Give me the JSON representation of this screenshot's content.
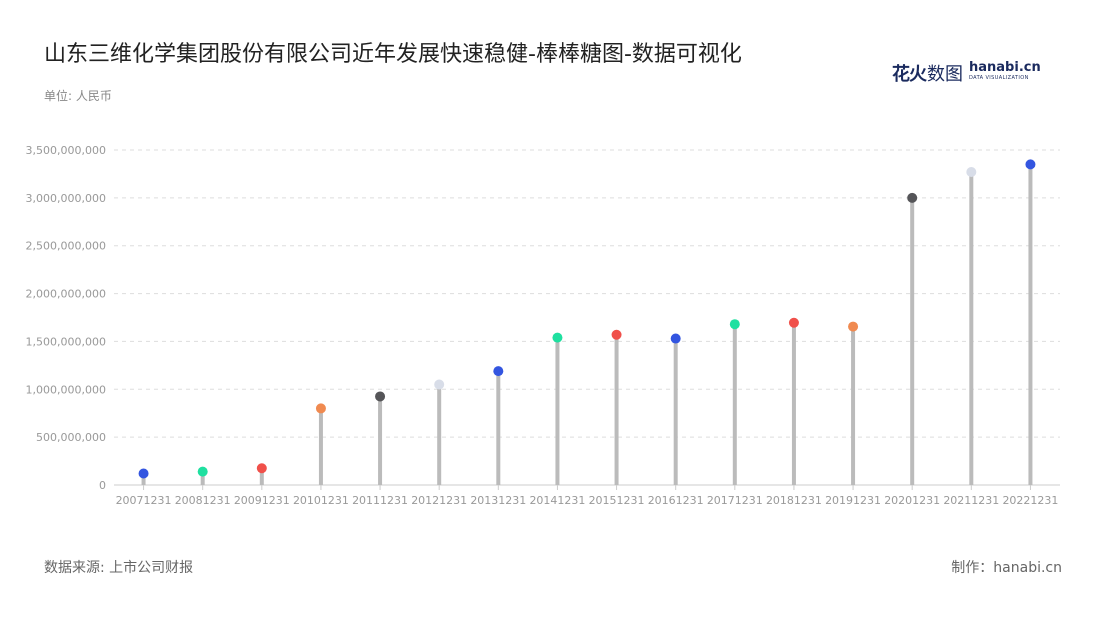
{
  "header": {
    "title": "山东三维化学集团股份有限公司近年发展快速稳健-棒棒糖图-数据可视化",
    "unit": "单位: 人民币"
  },
  "logo": {
    "cn": "花火",
    "cn2": "数图",
    "en": "hanabi.cn",
    "en_sub": "DATA VISUALIZATION"
  },
  "footer": {
    "source": "数据来源: 上市公司财报",
    "maker": "制作：hanabi.cn"
  },
  "colors": {
    "stem": "#bbbbbb",
    "grid": "#dddddd",
    "axis": "#cccccc",
    "dot_palette": [
      "#3355e0",
      "#1fe0a0",
      "#f0504a",
      "#f08a50",
      "#555558",
      "#d8dde8"
    ]
  },
  "chart_data": {
    "type": "lollipop",
    "categories": [
      "20071231",
      "20081231",
      "20091231",
      "20101231",
      "20111231",
      "20121231",
      "20131231",
      "20141231",
      "20151231",
      "20161231",
      "20171231",
      "20181231",
      "20191231",
      "20201231",
      "20211231",
      "20221231"
    ],
    "values": [
      120000000,
      140000000,
      175000000,
      800000000,
      925000000,
      1050000000,
      1190000000,
      1540000000,
      1570000000,
      1530000000,
      1680000000,
      1695000000,
      1655000000,
      3000000000,
      3270000000,
      3350000000
    ],
    "dot_colors": [
      "#3355e0",
      "#1fe0a0",
      "#f0504a",
      "#f08a50",
      "#555558",
      "#d8dde8",
      "#3355e0",
      "#1fe0a0",
      "#f0504a",
      "#3355e0",
      "#1fe0a0",
      "#f0504a",
      "#f08a50",
      "#555558",
      "#d8dde8",
      "#3355e0"
    ],
    "ylim": [
      0,
      3500000000
    ],
    "yticks": [
      0,
      500000000,
      1000000000,
      1500000000,
      2000000000,
      2500000000,
      3000000000,
      3500000000
    ],
    "ytick_labels": [
      "0",
      "500,000,000",
      "1,000,000,000",
      "1,500,000,000",
      "2,000,000,000",
      "2,500,000,000",
      "3,000,000,000",
      "3,500,000,000"
    ],
    "grid": true,
    "xlabel": "",
    "ylabel": ""
  }
}
